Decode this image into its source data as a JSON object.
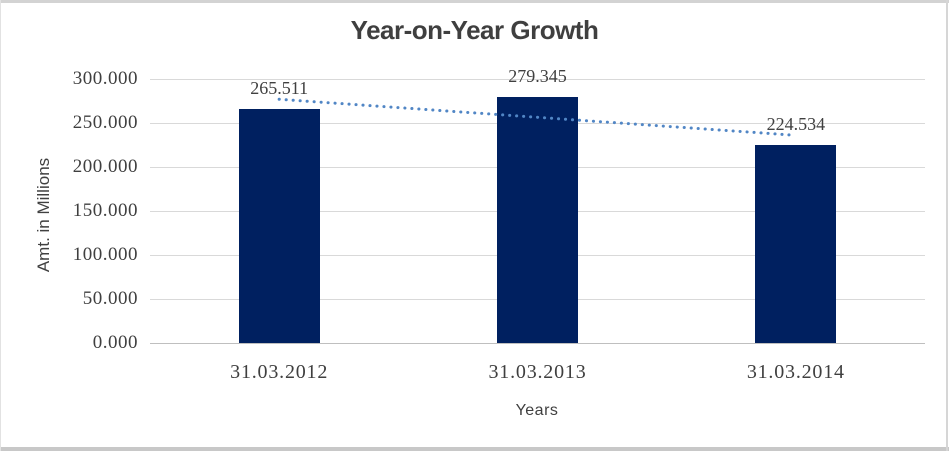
{
  "chart_data": {
    "type": "bar",
    "title": "Year-on-Year Growth",
    "xlabel": "Years",
    "ylabel": "Amt. in Millions",
    "categories": [
      "31.03.2012",
      "31.03.2013",
      "31.03.2014"
    ],
    "values": [
      265.511,
      279.345,
      224.534
    ],
    "data_labels": [
      "265.511",
      "279.345",
      "224.534"
    ],
    "ylim": [
      0,
      300
    ],
    "ytick_step": 50,
    "ytick_labels": [
      "0.000",
      "50.000",
      "100.000",
      "150.000",
      "200.000",
      "250.000",
      "300.000"
    ],
    "grid": "horizontal",
    "legend": "none",
    "bar_color": "#002060",
    "gridline_color": "#d9d9d9",
    "axis_line_color": "#bfbfbf",
    "trendline": {
      "type": "linear",
      "style": "dotted",
      "color": "#5186c5"
    }
  }
}
